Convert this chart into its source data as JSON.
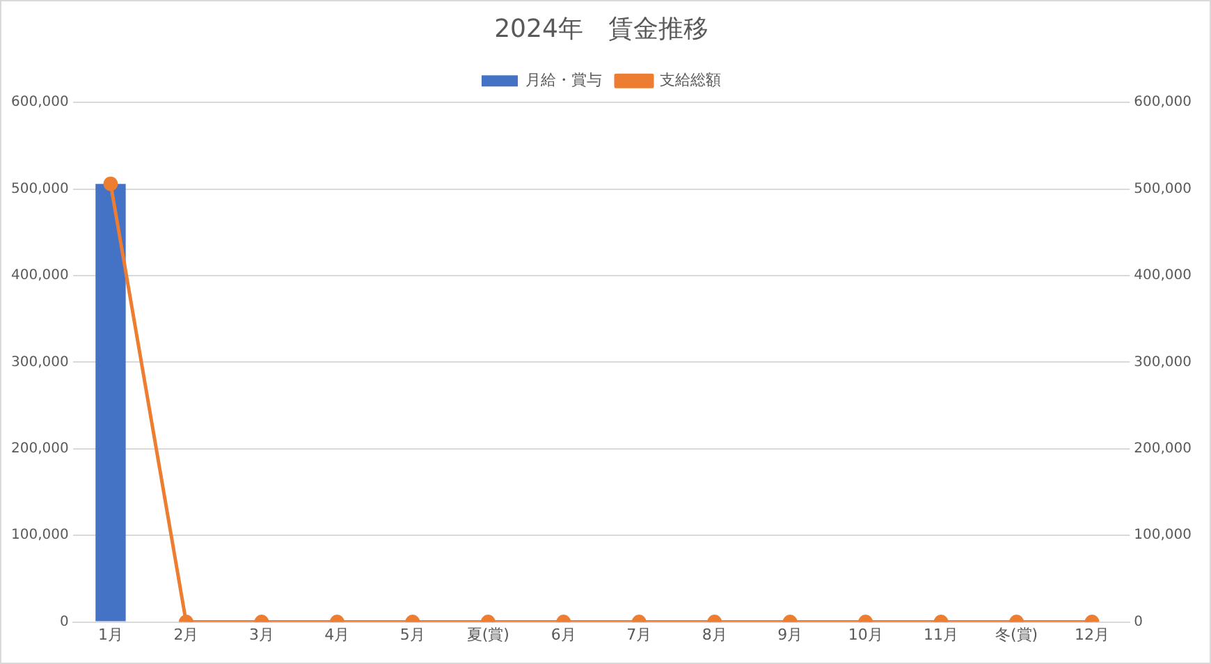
{
  "chart_data": {
    "type": "bar",
    "title": "2024年　賃金推移",
    "categories": [
      "1月",
      "2月",
      "3月",
      "4月",
      "5月",
      "夏(賞)",
      "6月",
      "7月",
      "8月",
      "9月",
      "10月",
      "11月",
      "冬(賞)",
      "12月"
    ],
    "series": [
      {
        "name": "月給・賞与",
        "color": "#4472c4",
        "values": [
          506000,
          0,
          0,
          0,
          0,
          0,
          0,
          0,
          0,
          0,
          0,
          0,
          0,
          0
        ]
      },
      {
        "name": "支給総額",
        "type": "line",
        "axis": "y2",
        "color": "#ed7d31",
        "marker": "circle",
        "values": [
          506000,
          0,
          0,
          0,
          0,
          0,
          0,
          0,
          0,
          0,
          0,
          0,
          0,
          0
        ]
      }
    ],
    "ylim": [
      0,
      600000
    ],
    "yticks": [
      0,
      {
        "value": 100000,
        "label": "100,000"
      },
      {
        "value": 200000,
        "label": "200,000"
      },
      {
        "value": 300000,
        "label": "300,000"
      },
      {
        "value": 400000,
        "label": "400,000"
      },
      {
        "value": 500000,
        "label": "500,000"
      },
      {
        "value": 600000,
        "label": "600,000"
      }
    ],
    "y2lim": [
      0,
      600000
    ],
    "y2ticks": [
      0,
      {
        "value": 100000,
        "label": "100,000"
      },
      {
        "value": 200000,
        "label": "200,000"
      },
      {
        "value": 300000,
        "label": "300,000"
      },
      {
        "value": 400000,
        "label": "400,000"
      },
      {
        "value": 500000,
        "label": "500,000"
      },
      {
        "value": 600000,
        "label": "600,000"
      }
    ],
    "grid": "y",
    "legend": "top"
  }
}
